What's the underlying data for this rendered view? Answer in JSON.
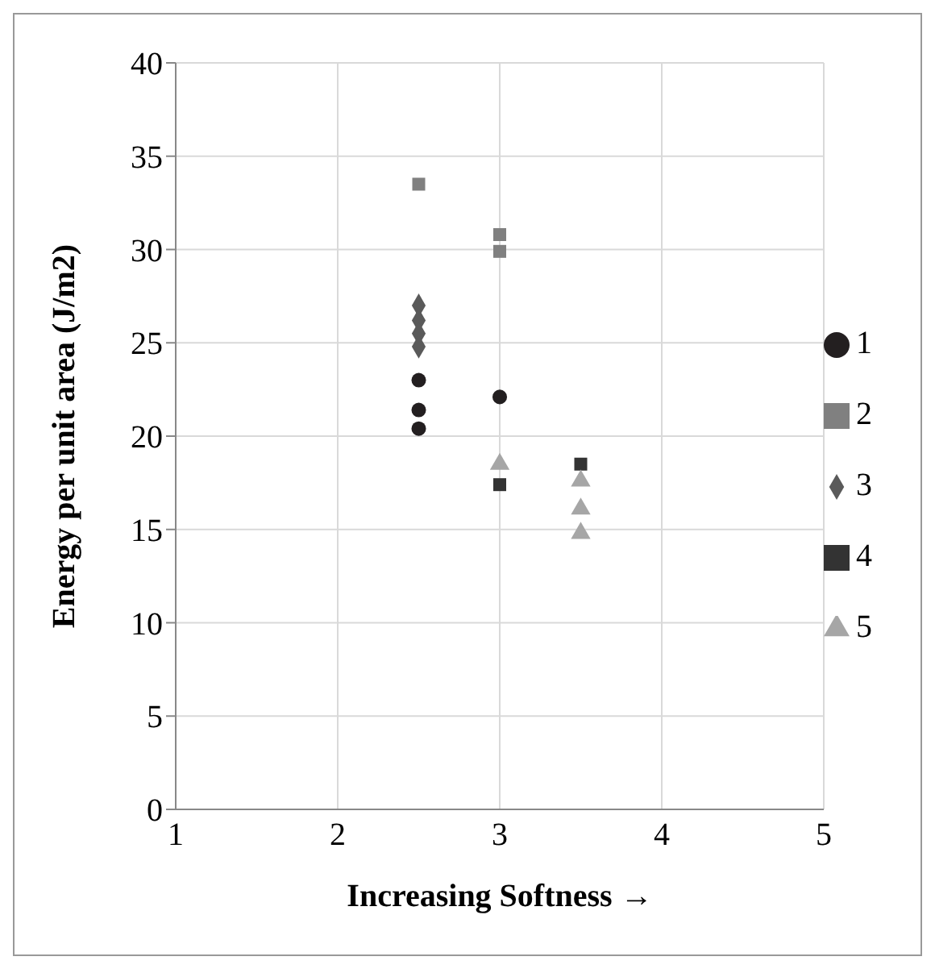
{
  "chart_data": {
    "type": "scatter",
    "xlabel": "Increasing Softness →",
    "ylabel": "Energy per unit area (J/m2)",
    "xlim": [
      1,
      5
    ],
    "xticks": [
      1,
      2,
      3,
      4,
      5
    ],
    "ylim": [
      0,
      40
    ],
    "yticks": [
      0,
      5,
      10,
      15,
      20,
      25,
      30,
      35,
      40
    ],
    "grid": true,
    "legend": "right",
    "series": [
      {
        "name": "1",
        "color": "#231f20",
        "marker": "circle",
        "x": [
          2.5,
          2.5,
          2.5,
          3
        ],
        "values": [
          23.0,
          21.4,
          20.4,
          22.1
        ]
      },
      {
        "name": "2",
        "color": "#808080",
        "marker": "square",
        "x": [
          2.5,
          3,
          3
        ],
        "values": [
          33.5,
          30.8,
          29.9
        ]
      },
      {
        "name": "3",
        "color": "#5a5a5a",
        "marker": "diamond",
        "x": [
          2.5,
          2.5,
          2.5,
          2.5
        ],
        "values": [
          27.0,
          26.2,
          25.5,
          24.8
        ]
      },
      {
        "name": "4",
        "color": "#333333",
        "marker": "square",
        "x": [
          3,
          3.5
        ],
        "values": [
          17.4,
          18.5
        ]
      },
      {
        "name": "5",
        "color": "#a6a6a6",
        "marker": "triangle",
        "x": [
          3,
          3.5,
          3.5,
          3.5
        ],
        "values": [
          18.5,
          17.6,
          16.1,
          14.8
        ]
      }
    ]
  }
}
